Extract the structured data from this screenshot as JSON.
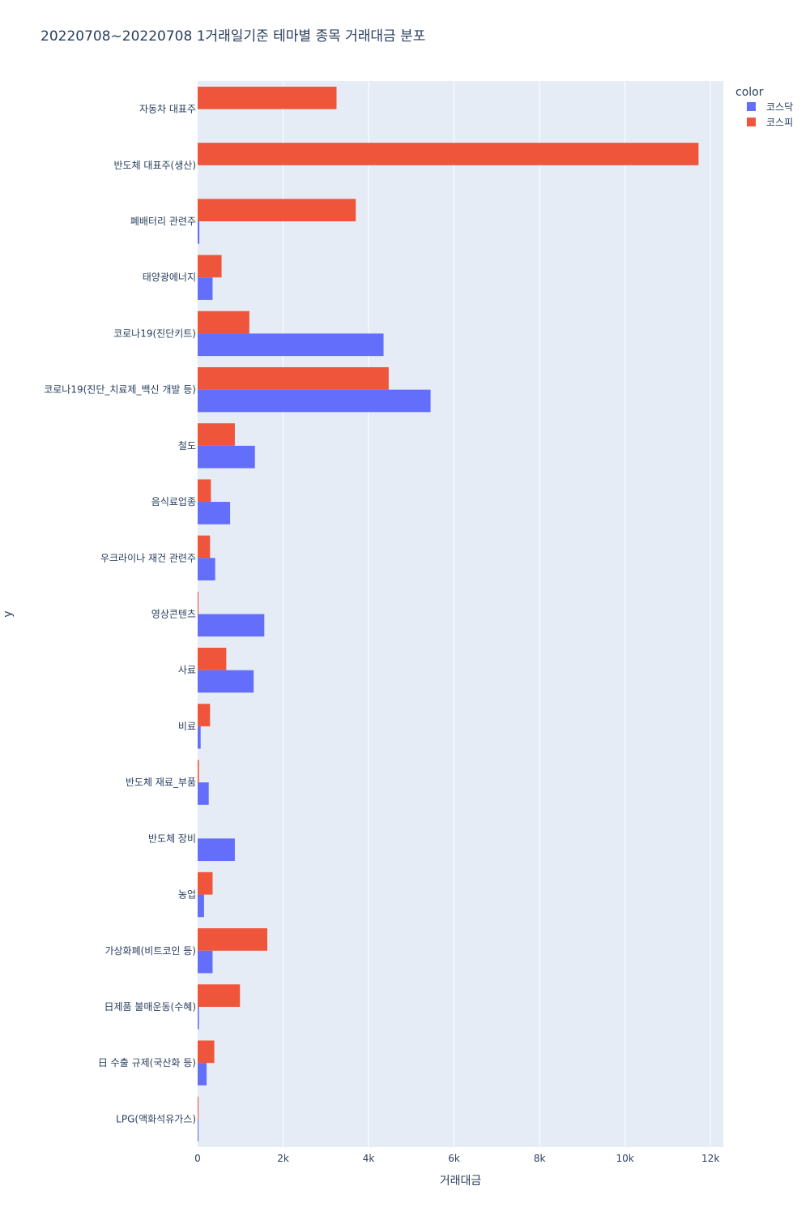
{
  "chart_data": {
    "type": "bar",
    "orientation": "horizontal",
    "title": "20220708~20220708 1거래일기준 테마별 종목 거래대금 분포",
    "xlabel": "거래대금",
    "ylabel": "y",
    "xlim": [
      0,
      12300
    ],
    "xticks": [
      0,
      2000,
      4000,
      6000,
      8000,
      10000,
      12000
    ],
    "xtick_labels": [
      "0",
      "2k",
      "4k",
      "6k",
      "8k",
      "10k",
      "12k"
    ],
    "legend_title": "color",
    "legend_position": "top-right",
    "categories": [
      "자동차 대표주",
      "반도체 대표주(생산)",
      "폐배터리 관련주",
      "태양광에너지",
      "코로나19(진단키트)",
      "코로나19(진단_치료제_백신 개발 등)",
      "철도",
      "음식료업종",
      "우크라이나 재건 관련주",
      "영상콘텐츠",
      "사료",
      "비료",
      "반도체 재료_부품",
      "반도체 장비",
      "농업",
      "가상화폐(비트코인 등)",
      "日제품 불매운동(수혜)",
      "日 수출 규제(국산화 등)",
      "LPG(액화석유가스)"
    ],
    "series": [
      {
        "name": "코스닥",
        "color": "#636efa",
        "values": [
          0,
          0,
          40,
          350,
          4350,
          5450,
          1340,
          760,
          410,
          1560,
          1310,
          70,
          260,
          870,
          150,
          350,
          30,
          210,
          20
        ]
      },
      {
        "name": "코스피",
        "color": "#ef553b",
        "values": [
          3250,
          11720,
          3700,
          560,
          1210,
          4470,
          870,
          310,
          290,
          20,
          670,
          290,
          30,
          0,
          350,
          1630,
          990,
          390,
          20
        ]
      }
    ]
  }
}
